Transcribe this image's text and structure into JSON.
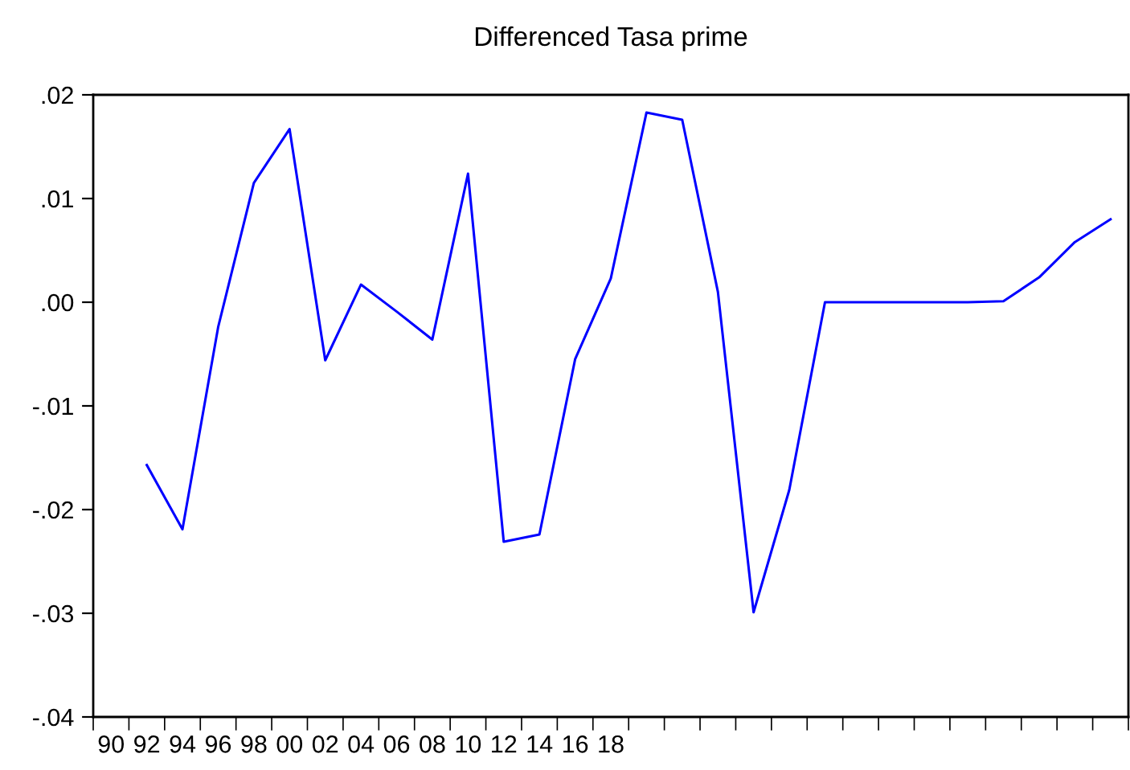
{
  "chart_data": {
    "type": "line",
    "title": "Differenced Tasa prime",
    "categories": [
      "90",
      "92",
      "94",
      "96",
      "98",
      "00",
      "02",
      "04",
      "06",
      "08",
      "10",
      "12",
      "14",
      "16",
      "18",
      null,
      null,
      null,
      null,
      null,
      null,
      null,
      null,
      null,
      null,
      null,
      null,
      null,
      null
    ],
    "series": [
      {
        "color": "#0000ff",
        "values": [
          null,
          -0.0157,
          -0.0219,
          -0.0024,
          0.0115,
          0.0167,
          -0.0056,
          0.0017,
          -0.0009,
          -0.0036,
          0.0124,
          -0.0231,
          -0.0224,
          -0.0055,
          0.0023,
          0.0183,
          0.0176,
          0.001,
          -0.0299,
          -0.0181,
          0.0,
          0.0,
          0.0,
          0.0,
          0.0,
          0.0001,
          0.0024,
          0.0058,
          0.008
        ]
      }
    ],
    "ylim": [
      -0.04,
      0.02
    ],
    "yticks": [
      {
        "value": -0.04,
        "label": "-.04"
      },
      {
        "value": -0.03,
        "label": "-.03"
      },
      {
        "value": -0.02,
        "label": "-.02"
      },
      {
        "value": -0.01,
        "label": "-.01"
      },
      {
        "value": 0.0,
        "label": ".00"
      },
      {
        "value": 0.01,
        "label": ".01"
      },
      {
        "value": 0.02,
        "label": ".02"
      }
    ]
  }
}
